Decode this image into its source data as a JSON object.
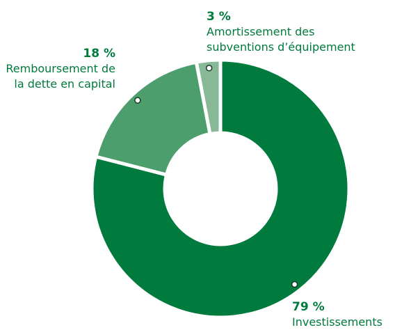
{
  "chart_data": {
    "type": "donut",
    "categories": [
      "Investissements",
      "Remboursement de la dette en capital",
      "Amortissement des subventions d’équipement"
    ],
    "values": [
      79,
      18,
      3
    ],
    "value_labels": [
      "79 %",
      "18 %",
      "3 %"
    ],
    "colors": [
      "#007a3d",
      "#4c9e6c",
      "#87b996"
    ]
  }
}
